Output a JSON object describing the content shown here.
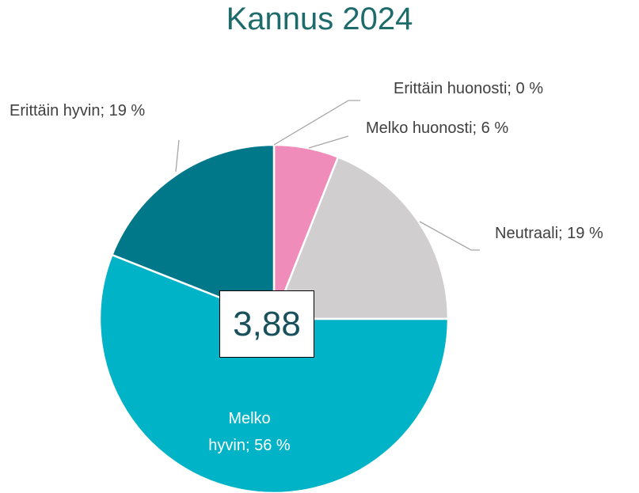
{
  "chart_data": {
    "type": "pie",
    "title": "Kannus 2024",
    "values": [
      0,
      6,
      19,
      56,
      19
    ],
    "value_labels": [
      "Erittäin huonosti; 0 %",
      "Melko huonosti; 6 %",
      "Neutraali; 19 %",
      "Melko\nhyvin; 56 %",
      "Erittäin hyvin; 19 %"
    ],
    "colors": [
      "#c00000",
      "#ef8cb9",
      "#d0cece",
      "#00b3c6",
      "#00788a"
    ],
    "start_angle": 0,
    "direction": "clockwise",
    "center_label": "3,88"
  }
}
